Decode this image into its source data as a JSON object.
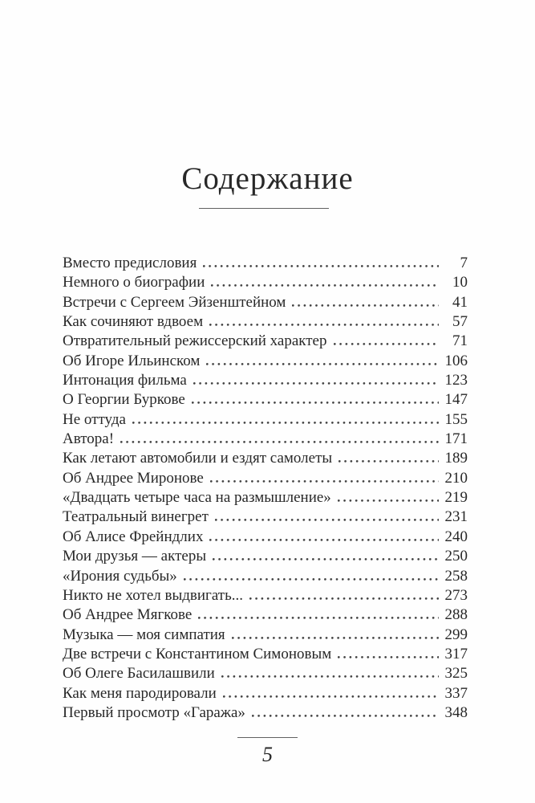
{
  "title": "Содержание",
  "page_number": "5",
  "toc": {
    "entries": [
      {
        "label": "Вместо предисловия",
        "page": "7"
      },
      {
        "label": "Немного о биографии",
        "page": "10"
      },
      {
        "label": "Встречи с Сергеем Эйзенштейном",
        "page": "41"
      },
      {
        "label": "Как сочиняют вдвоем",
        "page": "57"
      },
      {
        "label": "Отвратительный режиссерский характер",
        "page": "71"
      },
      {
        "label": "Об Игоре Ильинском",
        "page": "106"
      },
      {
        "label": "Интонация фильма",
        "page": "123"
      },
      {
        "label": "О Георгии Буркове",
        "page": "147"
      },
      {
        "label": "Не оттуда",
        "page": "155"
      },
      {
        "label": "Автора!",
        "page": "171"
      },
      {
        "label": "Как летают автомобили и ездят самолеты",
        "page": "189"
      },
      {
        "label": "Об Андрее Миронове",
        "page": "210"
      },
      {
        "label": "«Двадцать четыре часа на размышление»",
        "page": "219"
      },
      {
        "label": "Театральный винегрет",
        "page": "231"
      },
      {
        "label": "Об Алисе Фрейндлих",
        "page": "240"
      },
      {
        "label": "Мои друзья — актеры",
        "page": "250"
      },
      {
        "label": "«Ирония судьбы»",
        "page": "258"
      },
      {
        "label": "Никто не хотел выдвигать...",
        "page": "273"
      },
      {
        "label": "Об Андрее Мягкове",
        "page": "288"
      },
      {
        "label": "Музыка — моя симпатия",
        "page": "299"
      },
      {
        "label": "Две встречи с Константином Симоновым",
        "page": "317"
      },
      {
        "label": "Об Олеге Басилашвили",
        "page": "325"
      },
      {
        "label": "Как меня пародировали",
        "page": "337"
      },
      {
        "label": "Первый просмотр «Гаража»",
        "page": "348"
      }
    ]
  },
  "colors": {
    "text": "#282828",
    "dots": "#3f3f3f",
    "rule": "#616161",
    "background": "#fefefe"
  }
}
